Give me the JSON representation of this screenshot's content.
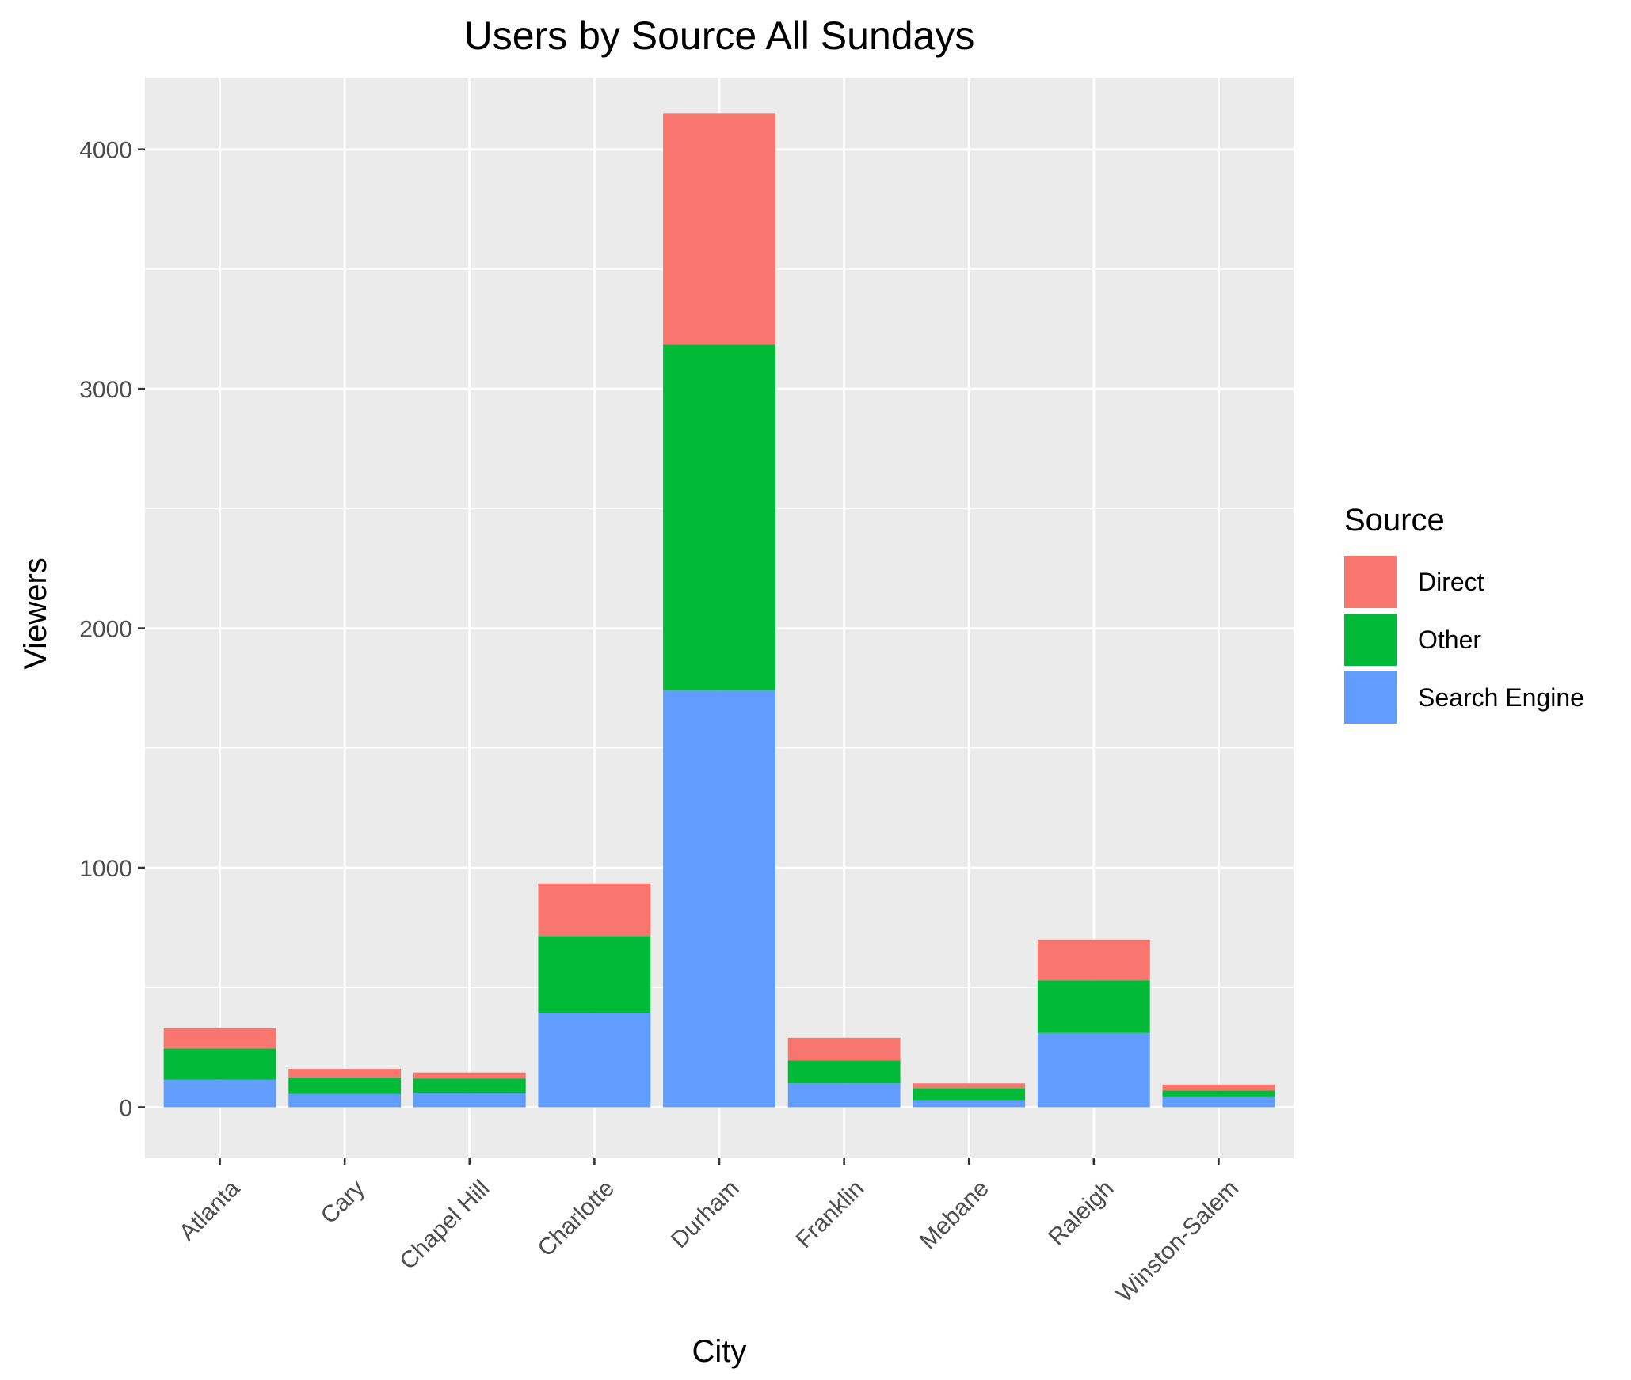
{
  "chart_data": {
    "type": "bar",
    "stacked": true,
    "title": "Users by Source All Sundays",
    "xlabel": "City",
    "ylabel": "Viewers",
    "ylim": [
      -210,
      4300
    ],
    "yticks": [
      0,
      1000,
      2000,
      3000,
      4000
    ],
    "grid": true,
    "legend_title": "Source",
    "legend_position": "right",
    "categories": [
      "Atlanta",
      "Cary",
      "Chapel Hill",
      "Charlotte",
      "Durham",
      "Franklin",
      "Mebane",
      "Raleigh",
      "Winston-Salem"
    ],
    "series": [
      {
        "name": "Search Engine",
        "color": "#619CFF",
        "values": [
          115,
          55,
          60,
          395,
          1740,
          100,
          30,
          310,
          45
        ]
      },
      {
        "name": "Other",
        "color": "#00BA38",
        "values": [
          130,
          70,
          60,
          320,
          1445,
          95,
          50,
          220,
          25
        ]
      },
      {
        "name": "Direct",
        "color": "#F8766D",
        "values": [
          85,
          35,
          25,
          220,
          965,
          95,
          20,
          170,
          25
        ]
      }
    ],
    "legend_order": [
      "Direct",
      "Other",
      "Search Engine"
    ]
  }
}
